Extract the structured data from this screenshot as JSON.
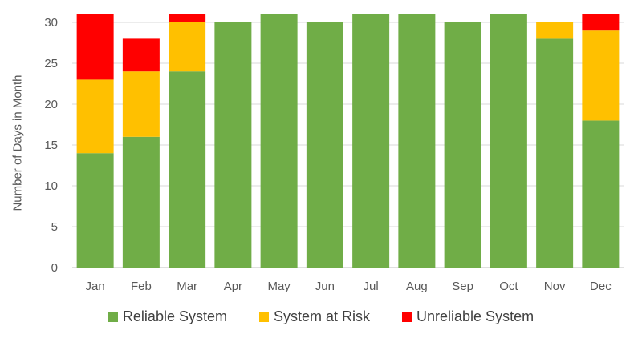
{
  "chart_data": {
    "type": "bar",
    "stacked": true,
    "title": "",
    "xlabel": "",
    "ylabel": "Number of Days in Month",
    "ylim": [
      0,
      31
    ],
    "yticks": [
      0,
      5,
      10,
      15,
      20,
      25,
      30
    ],
    "grid": true,
    "legend_position": "bottom",
    "categories": [
      "Jan",
      "Feb",
      "Mar",
      "Apr",
      "May",
      "Jun",
      "Jul",
      "Aug",
      "Sep",
      "Oct",
      "Nov",
      "Dec"
    ],
    "series": [
      {
        "name": "Reliable System",
        "color": "#70AD47",
        "values": [
          14,
          16,
          24,
          30,
          31,
          30,
          31,
          31,
          30,
          31,
          28,
          18
        ]
      },
      {
        "name": "System at Risk",
        "color": "#FFC000",
        "values": [
          9,
          8,
          6,
          0,
          0,
          0,
          0,
          0,
          0,
          0,
          2,
          11
        ]
      },
      {
        "name": "Unreliable System",
        "color": "#FF0000",
        "values": [
          8,
          4,
          1,
          0,
          0,
          0,
          0,
          0,
          0,
          0,
          0,
          2
        ]
      }
    ]
  },
  "legend": {
    "items": [
      {
        "label": "Reliable System",
        "color": "#70AD47"
      },
      {
        "label": "System at Risk",
        "color": "#FFC000"
      },
      {
        "label": "Unreliable System",
        "color": "#FF0000"
      }
    ]
  }
}
